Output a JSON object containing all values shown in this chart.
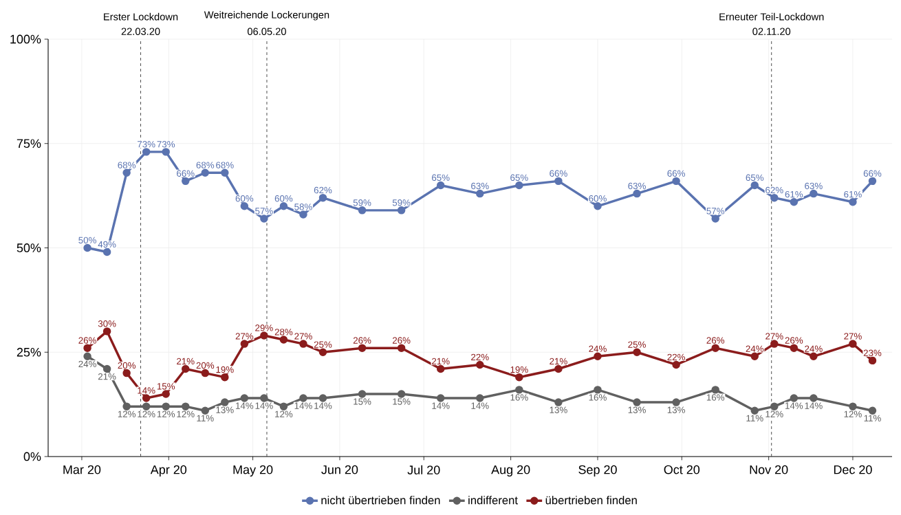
{
  "chart_data": {
    "type": "line",
    "x": [
      "2020-03-03",
      "2020-03-10",
      "2020-03-17",
      "2020-03-24",
      "2020-03-31",
      "2020-04-07",
      "2020-04-14",
      "2020-04-21",
      "2020-04-28",
      "2020-05-05",
      "2020-05-12",
      "2020-05-19",
      "2020-05-26",
      "2020-06-09",
      "2020-06-23",
      "2020-07-07",
      "2020-07-21",
      "2020-08-04",
      "2020-08-18",
      "2020-09-01",
      "2020-09-15",
      "2020-09-29",
      "2020-10-13",
      "2020-10-27",
      "2020-11-03",
      "2020-11-10",
      "2020-11-17",
      "2020-12-01",
      "2020-12-08"
    ],
    "series": [
      {
        "name": "nicht übertrieben finden",
        "color": "#5a73b0",
        "values": [
          50,
          49,
          68,
          73,
          73,
          66,
          68,
          68,
          60,
          57,
          60,
          58,
          62,
          59,
          59,
          65,
          63,
          65,
          66,
          60,
          63,
          66,
          57,
          65,
          62,
          61,
          63,
          61,
          66
        ],
        "value_labels": [
          "50%",
          "49%",
          "68%",
          "73%",
          "73%",
          "66%",
          "68%",
          "68%",
          "60%",
          "57%",
          "60%",
          "58%",
          "62%",
          "59%",
          "59%",
          "65%",
          "63%",
          "65%",
          "66%",
          "60%",
          "63%",
          "66%",
          "57%",
          "65%",
          "62%",
          "61%",
          "63%",
          "61%",
          "66%"
        ]
      },
      {
        "name": "indifferent",
        "color": "#606060",
        "values": [
          24,
          21,
          12,
          12,
          12,
          12,
          11,
          13,
          14,
          14,
          12,
          14,
          14,
          15,
          15,
          14,
          14,
          16,
          13,
          16,
          13,
          13,
          16,
          11,
          12,
          14,
          14,
          12,
          11
        ],
        "value_labels": [
          "24%",
          "21%",
          "12%",
          "12%",
          "12%",
          "12%",
          "11%",
          "13%",
          "14%",
          "14%",
          "12%",
          "14%",
          "14%",
          "15%",
          "15%",
          "14%",
          "14%",
          "16%",
          "13%",
          "16%",
          "13%",
          "13%",
          "16%",
          "11%",
          "12%",
          "14%",
          "14%",
          "12%",
          "11%"
        ]
      },
      {
        "name": "übertrieben finden",
        "color": "#8b1c1c",
        "values": [
          26,
          30,
          20,
          14,
          15,
          21,
          20,
          19,
          27,
          29,
          28,
          27,
          25,
          26,
          26,
          21,
          22,
          19,
          21,
          24,
          25,
          22,
          26,
          24,
          27,
          26,
          24,
          27,
          23
        ],
        "value_labels": [
          "26%",
          "30%",
          "20%",
          "14%",
          "15%",
          "21%",
          "20%",
          "19%",
          "27%",
          "29%",
          "28%",
          "27%",
          "25%",
          "26%",
          "26%",
          "21%",
          "22%",
          "19%",
          "21%",
          "24%",
          "25%",
          "22%",
          "26%",
          "24%",
          "27%",
          "26%",
          "24%",
          "27%",
          "23%"
        ]
      }
    ],
    "xlim": [
      "2020-02-18",
      "2020-12-15"
    ],
    "xticks": [
      {
        "value": "2020-03-01",
        "label": "Mar 20"
      },
      {
        "value": "2020-04-01",
        "label": "Apr 20"
      },
      {
        "value": "2020-05-01",
        "label": "May 20"
      },
      {
        "value": "2020-06-01",
        "label": "Jun 20"
      },
      {
        "value": "2020-07-01",
        "label": "Jul 20"
      },
      {
        "value": "2020-08-01",
        "label": "Aug 20"
      },
      {
        "value": "2020-09-01",
        "label": "Sep 20"
      },
      {
        "value": "2020-10-01",
        "label": "Oct 20"
      },
      {
        "value": "2020-11-01",
        "label": "Nov 20"
      },
      {
        "value": "2020-12-01",
        "label": "Dec 20"
      }
    ],
    "ylim": [
      0,
      100
    ],
    "yticks": [
      {
        "value": 0,
        "label": "0%"
      },
      {
        "value": 25,
        "label": "25%"
      },
      {
        "value": 50,
        "label": "50%"
      },
      {
        "value": 75,
        "label": "75%"
      },
      {
        "value": 100,
        "label": "100%"
      }
    ],
    "ref_lines": [
      {
        "axis": "x",
        "value": "2020-03-22",
        "label": "Erster Lockdown",
        "line_style": "dashed",
        "color": "#404040"
      },
      {
        "axis": "x",
        "value": "2020-05-06",
        "label": "Weitreichende Lockerungen",
        "line_style": "dashed",
        "color": "#404040"
      },
      {
        "axis": "x",
        "value": "2020-11-02",
        "label": "Erneuter Teil-Lockdown",
        "line_style": "dashed",
        "color": "#404040"
      }
    ],
    "annotations": [
      {
        "text": "22.03.20",
        "x": "2020-03-22",
        "y": 100
      },
      {
        "text": "06.05.20",
        "x": "2020-05-06",
        "y": 100
      },
      {
        "text": "02.11.20",
        "x": "2020-11-02",
        "y": 100
      }
    ],
    "grid": true,
    "legend": "bottom",
    "marker": "circle",
    "line_style": "solid"
  }
}
